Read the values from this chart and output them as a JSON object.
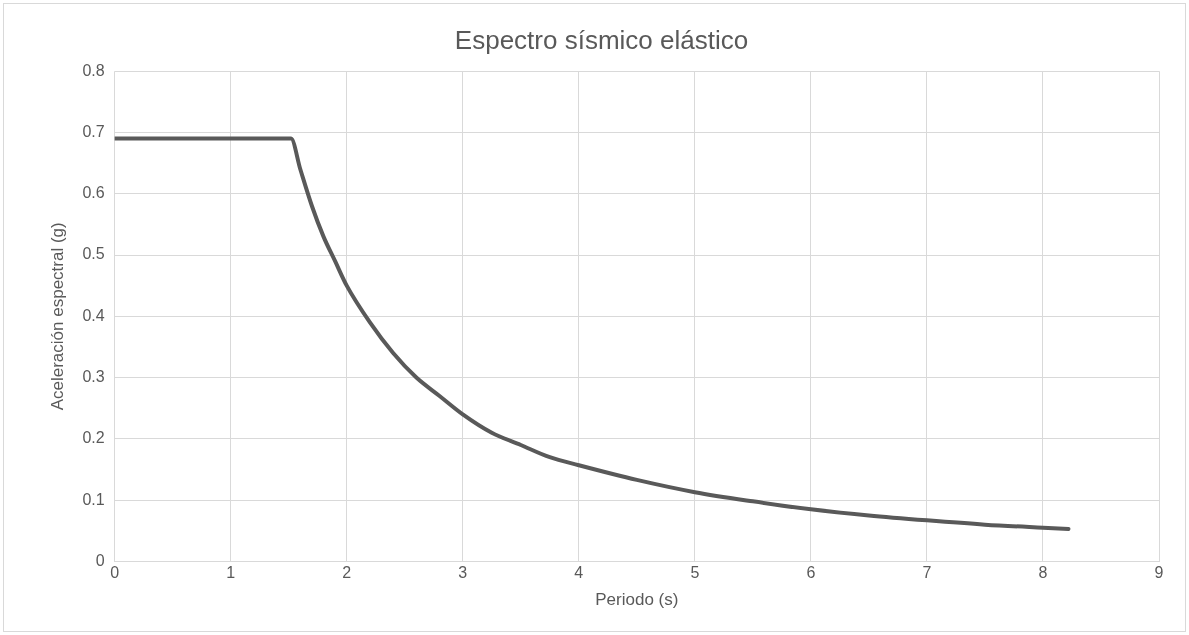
{
  "chart_data": {
    "type": "line",
    "title": "Espectro sísmico elástico",
    "xlabel": "Periodo (s)",
    "ylabel": "Aceleración espectral (g)",
    "xlim": [
      0,
      9
    ],
    "xticks": [
      0,
      1,
      2,
      3,
      4,
      5,
      6,
      7,
      8,
      9
    ],
    "ylim": [
      0,
      0.8
    ],
    "yticks": [
      0,
      0.1,
      0.2,
      0.3,
      0.4,
      0.5,
      0.6,
      0.7,
      0.8
    ],
    "grid": true,
    "marker": "none",
    "line_style": "solid",
    "series": [
      {
        "color": "#595959",
        "x": [
          0,
          1.5,
          1.52,
          1.6,
          1.7,
          1.8,
          1.9,
          2,
          2.2,
          2.4,
          2.6,
          2.8,
          3,
          3.25,
          3.5,
          3.75,
          4,
          4.5,
          5,
          5.5,
          6,
          6.5,
          7,
          7.5,
          8,
          8.22
        ],
        "values": [
          0.69,
          0.69,
          0.69,
          0.64,
          0.58,
          0.53,
          0.49,
          0.45,
          0.39,
          0.34,
          0.3,
          0.27,
          0.24,
          0.21,
          0.19,
          0.17,
          0.157,
          0.133,
          0.113,
          0.098,
          0.085,
          0.075,
          0.067,
          0.06,
          0.055,
          0.053
        ]
      }
    ]
  }
}
